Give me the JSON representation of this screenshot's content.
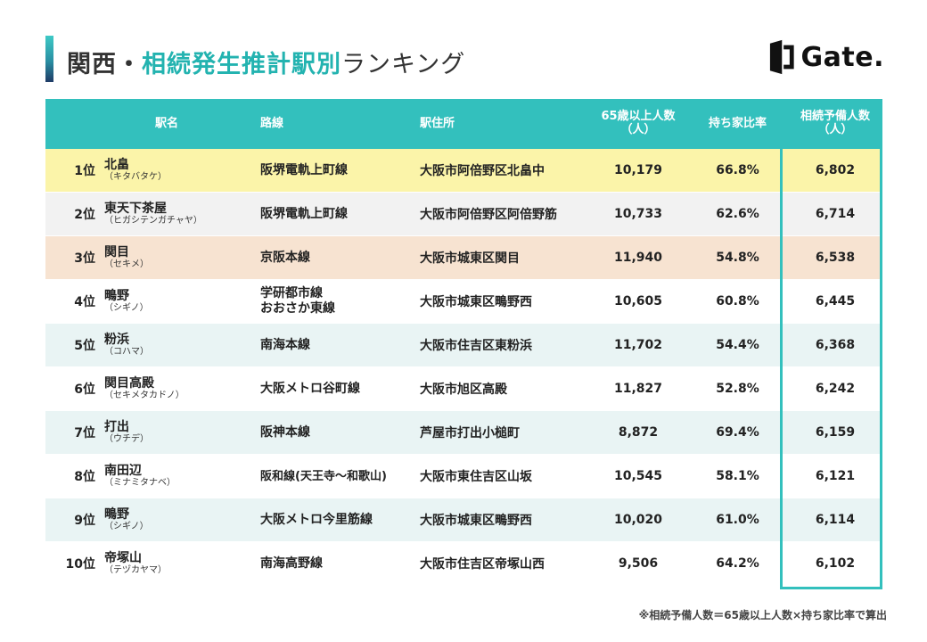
{
  "header": {
    "title_part1": "関西・",
    "title_part2": "相続発生推計駅別",
    "title_part3": "ランキング",
    "logo_text": "Gate."
  },
  "colors": {
    "accent": "#33c0bd",
    "highlight_yellow": "#fbf4a9",
    "highlight_peach": "#f7e3d1"
  },
  "table": {
    "columns": {
      "station": "駅名",
      "line": "路線",
      "address": "駅住所",
      "elderly_line1": "65歳以上人数",
      "elderly_line2": "（人）",
      "ownership": "持ち家比率",
      "candidates_line1": "相続予備人数",
      "candidates_line2": "（人）"
    },
    "rows": [
      {
        "rank": "1位",
        "name": "北畠",
        "kana": "（キタバタケ）",
        "line1": "阪堺電軌上町線",
        "line2": "",
        "address": "大阪市阿倍野区北畠中",
        "elderly": "10,179",
        "ownership": "66.8%",
        "candidates": "6,802"
      },
      {
        "rank": "2位",
        "name": "東天下茶屋",
        "kana": "（ヒガシテンガチャヤ）",
        "line1": "阪堺電軌上町線",
        "line2": "",
        "address": "大阪市阿倍野区阿倍野筋",
        "elderly": "10,733",
        "ownership": "62.6%",
        "candidates": "6,714"
      },
      {
        "rank": "3位",
        "name": "関目",
        "kana": "（セキメ）",
        "line1": "京阪本線",
        "line2": "",
        "address": "大阪市城東区関目",
        "elderly": "11,940",
        "ownership": "54.8%",
        "candidates": "6,538"
      },
      {
        "rank": "4位",
        "name": "鴫野",
        "kana": "（シギノ）",
        "line1": "学研都市線",
        "line2": "おおさか東線",
        "address": "大阪市城東区鴫野西",
        "elderly": "10,605",
        "ownership": "60.8%",
        "candidates": "6,445"
      },
      {
        "rank": "5位",
        "name": "粉浜",
        "kana": "（コハマ）",
        "line1": "南海本線",
        "line2": "",
        "address": "大阪市住吉区東粉浜",
        "elderly": "11,702",
        "ownership": "54.4%",
        "candidates": "6,368"
      },
      {
        "rank": "6位",
        "name": "関目高殿",
        "kana": "（セキメタカドノ）",
        "line1": "大阪メトロ谷町線",
        "line2": "",
        "address": "大阪市旭区高殿",
        "elderly": "11,827",
        "ownership": "52.8%",
        "candidates": "6,242"
      },
      {
        "rank": "7位",
        "name": "打出",
        "kana": "（ウチデ）",
        "line1": "阪神本線",
        "line2": "",
        "address": "芦屋市打出小槌町",
        "elderly": "8,872",
        "ownership": "69.4%",
        "candidates": "6,159"
      },
      {
        "rank": "8位",
        "name": "南田辺",
        "kana": "（ミナミタナベ）",
        "line1": "阪和線(天王寺～和歌山)",
        "line2": "",
        "address": "大阪市東住吉区山坂",
        "elderly": "10,545",
        "ownership": "58.1%",
        "candidates": "6,121"
      },
      {
        "rank": "9位",
        "name": "鴫野",
        "kana": "（シギノ）",
        "line1": "大阪メトロ今里筋線",
        "line2": "",
        "address": "大阪市城東区鴫野西",
        "elderly": "10,020",
        "ownership": "61.0%",
        "candidates": "6,114"
      },
      {
        "rank": "10位",
        "name": "帝塚山",
        "kana": "（テヅカヤマ）",
        "line1": "南海高野線",
        "line2": "",
        "address": "大阪市住吉区帝塚山西",
        "elderly": "9,506",
        "ownership": "64.2%",
        "candidates": "6,102"
      }
    ]
  },
  "footnote": "※相続予備人数＝65歳以上人数×持ち家比率で算出"
}
